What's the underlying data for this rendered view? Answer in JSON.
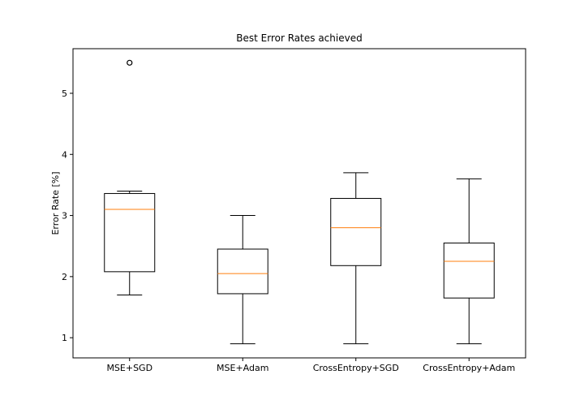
{
  "chart_data": {
    "type": "box",
    "title": "Best Error Rates achieved",
    "xlabel": "",
    "ylabel": "Error Rate [%]",
    "categories": [
      "MSE+SGD",
      "MSE+Adam",
      "CrossEntropy+SGD",
      "CrossEntropy+Adam"
    ],
    "boxes": [
      {
        "label": "MSE+SGD",
        "whisker_low": 1.7,
        "q1": 2.08,
        "median": 3.1,
        "q3": 3.36,
        "whisker_high": 3.4,
        "outliers": [
          5.5
        ]
      },
      {
        "label": "MSE+Adam",
        "whisker_low": 0.9,
        "q1": 1.72,
        "median": 2.05,
        "q3": 2.45,
        "whisker_high": 3.0,
        "outliers": []
      },
      {
        "label": "CrossEntropy+SGD",
        "whisker_low": 0.9,
        "q1": 2.18,
        "median": 2.8,
        "q3": 3.28,
        "whisker_high": 3.7,
        "outliers": []
      },
      {
        "label": "CrossEntropy+Adam",
        "whisker_low": 0.9,
        "q1": 1.65,
        "median": 2.25,
        "q3": 2.55,
        "whisker_high": 3.6,
        "outliers": []
      }
    ],
    "yticks": [
      1,
      2,
      3,
      4,
      5
    ],
    "ylim": [
      0.67,
      5.73
    ],
    "grid": false,
    "colors": {
      "box": "#000000",
      "median": "#ff7f0e",
      "background": "#ffffff"
    }
  }
}
